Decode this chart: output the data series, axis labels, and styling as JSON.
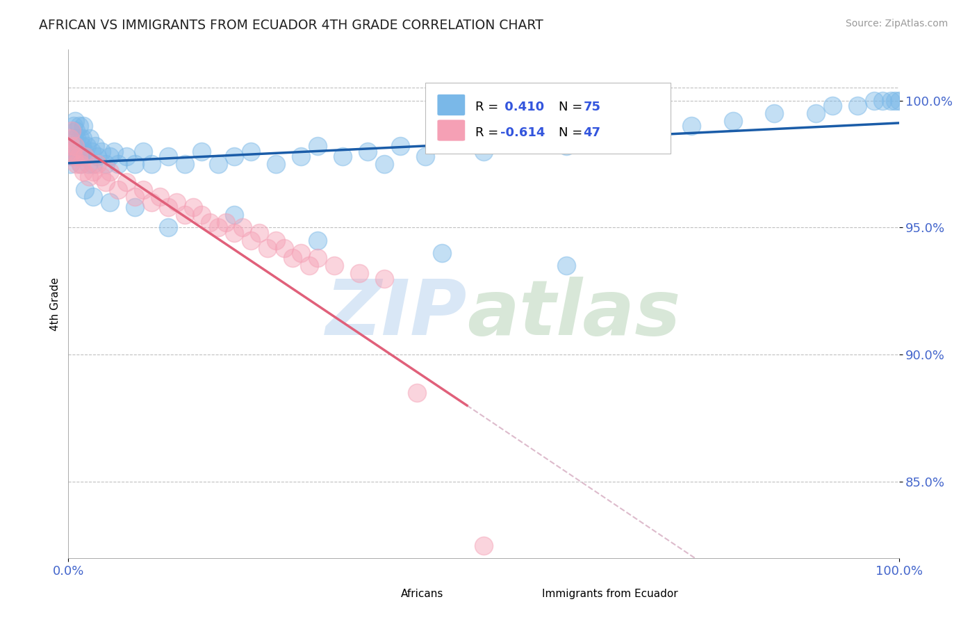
{
  "title": "AFRICAN VS IMMIGRANTS FROM ECUADOR 4TH GRADE CORRELATION CHART",
  "source": "Source: ZipAtlas.com",
  "ylabel": "4th Grade",
  "xlim": [
    0.0,
    100.0
  ],
  "ylim": [
    82.0,
    102.0
  ],
  "yticks": [
    85.0,
    90.0,
    95.0,
    100.0
  ],
  "ytick_labels": [
    "85.0%",
    "90.0%",
    "95.0%",
    "100.0%"
  ],
  "xtick_labels": [
    "0.0%",
    "100.0%"
  ],
  "blue_color": "#7ab8e8",
  "pink_color": "#f5a0b5",
  "blue_line_color": "#1a5ca8",
  "pink_line_color": "#e0607a",
  "dash_line_color": "#ddbbcc",
  "top_dash_y": 100.5,
  "africans_x": [
    0.2,
    0.3,
    0.4,
    0.5,
    0.6,
    0.7,
    0.8,
    0.9,
    1.0,
    1.1,
    1.2,
    1.3,
    1.4,
    1.5,
    1.6,
    1.7,
    1.8,
    1.9,
    2.0,
    2.2,
    2.4,
    2.6,
    2.8,
    3.0,
    3.2,
    3.5,
    4.0,
    4.5,
    5.0,
    5.5,
    6.0,
    7.0,
    8.0,
    9.0,
    10.0,
    12.0,
    14.0,
    16.0,
    18.0,
    20.0,
    22.0,
    25.0,
    28.0,
    30.0,
    33.0,
    36.0,
    38.0,
    40.0,
    43.0,
    46.0,
    50.0,
    55.0,
    60.0,
    65.0,
    70.0,
    75.0,
    80.0,
    85.0,
    90.0,
    92.0,
    95.0,
    97.0,
    98.0,
    99.0,
    99.5,
    100.0,
    60.0,
    45.0,
    30.0,
    20.0,
    12.0,
    8.0,
    5.0,
    3.0,
    2.0
  ],
  "africans_y": [
    97.5,
    98.0,
    97.8,
    98.2,
    99.0,
    98.5,
    99.2,
    98.8,
    98.5,
    97.8,
    98.0,
    99.0,
    98.5,
    97.5,
    98.2,
    98.5,
    99.0,
    98.0,
    97.8,
    98.2,
    97.5,
    98.5,
    98.0,
    97.5,
    98.2,
    97.8,
    98.0,
    97.5,
    97.8,
    98.0,
    97.5,
    97.8,
    97.5,
    98.0,
    97.5,
    97.8,
    97.5,
    98.0,
    97.5,
    97.8,
    98.0,
    97.5,
    97.8,
    98.2,
    97.8,
    98.0,
    97.5,
    98.2,
    97.8,
    98.5,
    98.0,
    98.5,
    98.2,
    98.5,
    98.8,
    99.0,
    99.2,
    99.5,
    99.5,
    99.8,
    99.8,
    100.0,
    100.0,
    100.0,
    100.0,
    100.0,
    93.5,
    94.0,
    94.5,
    95.5,
    95.0,
    95.8,
    96.0,
    96.2,
    96.5
  ],
  "ecuador_x": [
    0.2,
    0.3,
    0.4,
    0.5,
    0.6,
    0.8,
    1.0,
    1.2,
    1.5,
    1.8,
    2.0,
    2.5,
    3.0,
    3.5,
    4.0,
    4.5,
    5.0,
    6.0,
    7.0,
    8.0,
    9.0,
    10.0,
    11.0,
    12.0,
    13.0,
    14.0,
    15.0,
    16.0,
    17.0,
    18.0,
    19.0,
    20.0,
    21.0,
    22.0,
    23.0,
    24.0,
    25.0,
    26.0,
    27.0,
    28.0,
    29.0,
    30.0,
    32.0,
    35.0,
    38.0,
    42.0,
    50.0
  ],
  "ecuador_y": [
    98.5,
    98.2,
    98.8,
    98.0,
    97.8,
    98.2,
    97.5,
    97.8,
    97.5,
    97.2,
    97.8,
    97.0,
    97.2,
    97.5,
    97.0,
    96.8,
    97.2,
    96.5,
    96.8,
    96.2,
    96.5,
    96.0,
    96.2,
    95.8,
    96.0,
    95.5,
    95.8,
    95.5,
    95.2,
    95.0,
    95.2,
    94.8,
    95.0,
    94.5,
    94.8,
    94.2,
    94.5,
    94.2,
    93.8,
    94.0,
    93.5,
    93.8,
    93.5,
    93.2,
    93.0,
    88.5,
    82.5
  ],
  "blue_trend_x": [
    0,
    100
  ],
  "blue_trend_y_start": 97.0,
  "blue_trend_y_end": 100.0,
  "pink_trend_x_start": 0,
  "pink_trend_x_solid_end": 48,
  "pink_trend_x_dash_end": 100,
  "pink_trend_y_start": 98.5,
  "pink_trend_y_at_solid_end": 88.0,
  "pink_trend_y_at_dash_end": 79.0
}
